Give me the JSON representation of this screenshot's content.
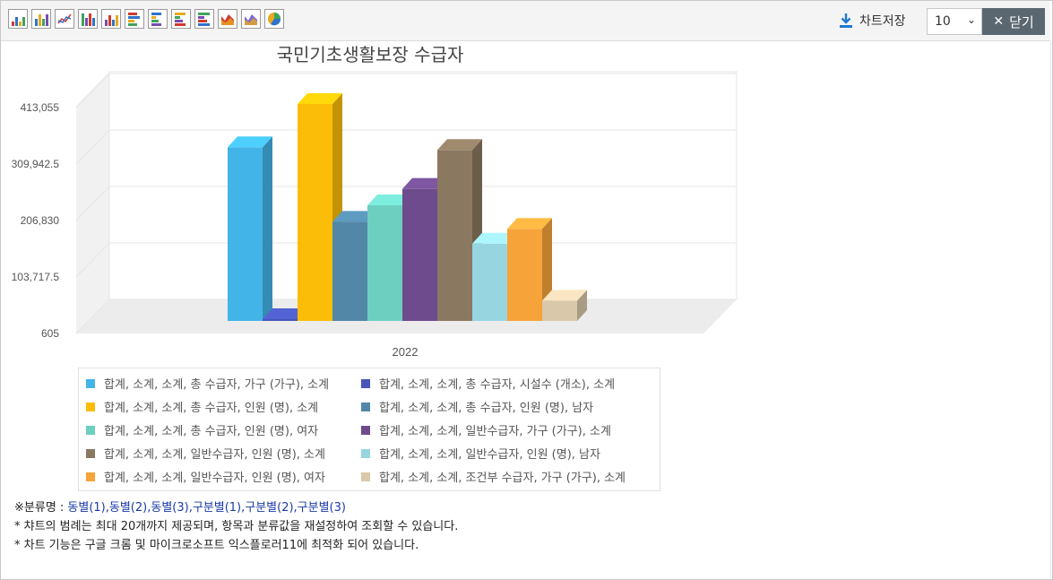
{
  "toolbar": {
    "icons": [
      "bar-chart-icon",
      "bar-chart-2-icon",
      "line-chart-icon",
      "bar-chart-3-icon",
      "stacked-bar-icon",
      "horizontal-bar-icon",
      "horizontal-bar-2-icon",
      "horizontal-bar-3-icon",
      "horizontal-stacked-icon",
      "area-chart-icon",
      "area-chart-2-icon",
      "pie-chart-icon"
    ],
    "save_label": "차트저장",
    "rows_value": "10",
    "close_label": "닫기"
  },
  "chart_data": {
    "type": "bar",
    "title": "국민기초생활보장 수급자",
    "categories": [
      "2022"
    ],
    "yticks": [
      "413,055",
      "309,942.5",
      "206,830",
      "103,717.5",
      "605"
    ],
    "ylim": [
      605,
      413055
    ],
    "series": [
      {
        "name": "합계, 소계, 소계, 총 수급자, 가구 (가구), 소계",
        "color": "#43b4e8",
        "value": 321000
      },
      {
        "name": "합계, 소계, 소계, 총 수급자, 시설수 (개소), 소계",
        "color": "#4856b8",
        "value": 1400
      },
      {
        "name": "합계, 소계, 소계, 총 수급자, 인원 (명), 소계",
        "color": "#fbbd08",
        "value": 400000
      },
      {
        "name": "합계, 소계, 소계, 총 수급자, 인원 (명), 남자",
        "color": "#5287a8",
        "value": 185000
      },
      {
        "name": "합계, 소계, 소계, 총 수급자, 인원 (명), 여자",
        "color": "#6dcfc0",
        "value": 215000
      },
      {
        "name": "합계, 소계, 소계, 일반수급자, 가구 (가구), 소계",
        "color": "#6e4b8c",
        "value": 245000
      },
      {
        "name": "합계, 소계, 소계, 일반수급자, 인원 (명), 소계",
        "color": "#8b7860",
        "value": 316000
      },
      {
        "name": "합계, 소계, 소계, 일반수급자, 인원 (명), 남자",
        "color": "#97d6e1",
        "value": 145000
      },
      {
        "name": "합계, 소계, 소계, 일반수급자, 인원 (명), 여자",
        "color": "#f6a33a",
        "value": 172000
      },
      {
        "name": "합계, 소계, 소계, 조건부 수급자, 가구 (가구), 소계",
        "color": "#d9c8a9",
        "value": 41000
      }
    ]
  },
  "notes": {
    "line1_prefix": "※분류명 : ",
    "line1_links": "동별(1),동별(2),동별(3),구분별(1),구분별(2),구분별(3)",
    "line2": "* 챠트의 범례는 최대 20개까지 제공되며, 항목과 분류값을 재설정하여 조회할 수 있습니다.",
    "line3": "* 차트 기능은 구글 크롬 및 마이크로소프트 익스플로러11에 최적화 되어 있습니다."
  }
}
